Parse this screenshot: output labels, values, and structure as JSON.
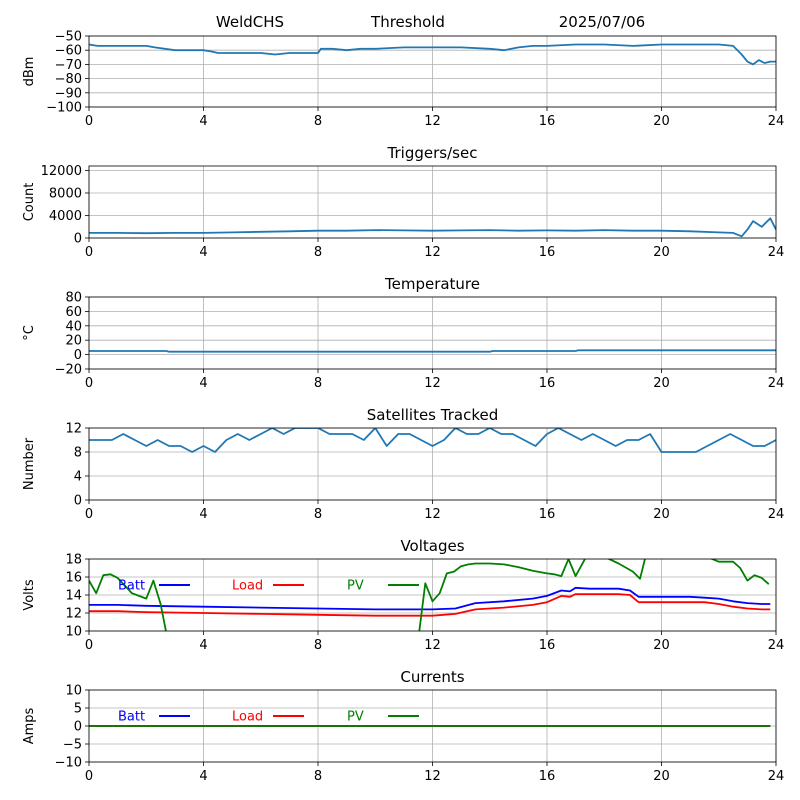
{
  "header": {
    "station": "WeldCHS",
    "mode": "Threshold",
    "date": "2025/07/06"
  },
  "colors": {
    "main": "#1f77b4",
    "batt": "#0000ff",
    "load": "#ff0000",
    "pv": "#008000"
  },
  "chart_data": [
    {
      "id": "signal",
      "type": "line",
      "title": "",
      "ylabel": "dBm",
      "xlim": [
        0,
        24
      ],
      "ylim": [
        -100,
        -50
      ],
      "xticks": [
        0,
        4,
        8,
        12,
        16,
        20,
        24
      ],
      "yticks": [
        -100,
        -90,
        -80,
        -70,
        -60,
        -50
      ],
      "series": [
        {
          "color_key": "main",
          "x": [
            0,
            0.3,
            1,
            2,
            2.3,
            3,
            4,
            4.3,
            4.5,
            5,
            6,
            6.5,
            7,
            7.5,
            8,
            8.1,
            8.5,
            9,
            9.5,
            10,
            11,
            12,
            13,
            14,
            14.5,
            15,
            15.5,
            16,
            17,
            18,
            19,
            20,
            21,
            22,
            22.5,
            22.8,
            23,
            23.2,
            23.4,
            23.6,
            23.8,
            24
          ],
          "y": [
            -56,
            -57,
            -57,
            -57,
            -58,
            -60,
            -60,
            -61,
            -62,
            -62,
            -62,
            -63,
            -62,
            -62,
            -62,
            -59,
            -59,
            -60,
            -59,
            -59,
            -58,
            -58,
            -58,
            -59,
            -60,
            -58,
            -57,
            -57,
            -56,
            -56,
            -57,
            -56,
            -56,
            -56,
            -57,
            -63,
            -68,
            -70,
            -67,
            -69,
            -68,
            -68
          ]
        }
      ]
    },
    {
      "id": "triggers",
      "type": "line",
      "title": "Triggers/sec",
      "ylabel": "Count",
      "xlim": [
        0,
        24
      ],
      "ylim": [
        0,
        12800
      ],
      "xticks": [
        0,
        4,
        8,
        12,
        16,
        20,
        24
      ],
      "yticks": [
        0,
        4000,
        8000,
        12000
      ],
      "series": [
        {
          "color_key": "main",
          "x": [
            0,
            1,
            2,
            3,
            4,
            5,
            6,
            7,
            8,
            9,
            10,
            11,
            12,
            13,
            14,
            15,
            16,
            17,
            18,
            19,
            20,
            21,
            22,
            22.5,
            22.8,
            23,
            23.2,
            23.5,
            23.8,
            24
          ],
          "y": [
            900,
            900,
            850,
            900,
            900,
            1000,
            1100,
            1200,
            1300,
            1300,
            1400,
            1350,
            1300,
            1350,
            1400,
            1300,
            1350,
            1300,
            1400,
            1300,
            1300,
            1200,
            1000,
            900,
            300,
            1500,
            3000,
            2000,
            3500,
            1500
          ]
        }
      ]
    },
    {
      "id": "temperature",
      "type": "line",
      "title": "Temperature",
      "ylabel": "°C",
      "xlim": [
        0,
        24
      ],
      "ylim": [
        -20,
        80
      ],
      "xticks": [
        0,
        4,
        8,
        12,
        16,
        20,
        24
      ],
      "yticks": [
        -20,
        0,
        20,
        40,
        60,
        80
      ],
      "series": [
        {
          "color_key": "main",
          "x": [
            0,
            2.7,
            2.8,
            14,
            14.1,
            17,
            17.1,
            24
          ],
          "y": [
            5,
            5,
            4,
            4,
            5,
            5,
            6,
            6
          ]
        }
      ]
    },
    {
      "id": "satellites",
      "type": "line",
      "title": "Satellites Tracked",
      "ylabel": "Number",
      "xlim": [
        0,
        24
      ],
      "ylim": [
        0,
        12
      ],
      "xticks": [
        0,
        4,
        8,
        12,
        16,
        20,
        24
      ],
      "yticks": [
        0,
        4,
        8,
        12
      ],
      "series": [
        {
          "color_key": "main",
          "x": [
            0,
            0.8,
            1.2,
            1.6,
            2,
            2.4,
            2.8,
            3.2,
            3.6,
            4,
            4.4,
            4.8,
            5.2,
            5.6,
            6,
            6.4,
            6.8,
            7.2,
            7.6,
            8,
            8.4,
            8.8,
            9.2,
            9.6,
            10,
            10.4,
            10.8,
            11.2,
            11.6,
            12,
            12.4,
            12.8,
            13.2,
            13.6,
            14,
            14.4,
            14.8,
            15.2,
            15.6,
            16,
            16.4,
            16.8,
            17.2,
            17.6,
            18,
            18.4,
            18.8,
            19.2,
            19.6,
            20,
            20.4,
            20.8,
            21.2,
            21.6,
            22,
            22.4,
            22.8,
            23.2,
            23.6,
            24
          ],
          "y": [
            10,
            10,
            11,
            10,
            9,
            10,
            9,
            9,
            8,
            9,
            8,
            10,
            11,
            10,
            11,
            12,
            11,
            12,
            12,
            12,
            11,
            11,
            11,
            10,
            12,
            9,
            11,
            11,
            10,
            9,
            10,
            12,
            11,
            11,
            12,
            11,
            11,
            10,
            9,
            11,
            12,
            11,
            10,
            11,
            10,
            9,
            10,
            10,
            11,
            8,
            8,
            8,
            8,
            9,
            10,
            11,
            10,
            9,
            9,
            10
          ]
        }
      ]
    },
    {
      "id": "voltages",
      "type": "line",
      "title": "Voltages",
      "ylabel": "Volts",
      "xlim": [
        0,
        24
      ],
      "ylim": [
        10,
        18
      ],
      "xticks": [
        0,
        4,
        8,
        12,
        16,
        20,
        24
      ],
      "yticks": [
        10,
        12,
        14,
        16,
        18
      ],
      "legend": [
        "Batt",
        "Load",
        "PV"
      ],
      "series": [
        {
          "name": "Batt",
          "color_key": "batt",
          "x": [
            0,
            1,
            2,
            4,
            6,
            8,
            10,
            12,
            12.8,
            13.5,
            14.5,
            15.5,
            16,
            16.5,
            16.8,
            17,
            17.5,
            18.5,
            18.9,
            19.2,
            20,
            21,
            21.5,
            22,
            22.5,
            23,
            23.5,
            23.8
          ],
          "y": [
            12.9,
            12.9,
            12.8,
            12.7,
            12.6,
            12.5,
            12.4,
            12.4,
            12.5,
            13.1,
            13.3,
            13.6,
            13.9,
            14.5,
            14.4,
            14.8,
            14.7,
            14.7,
            14.5,
            13.8,
            13.8,
            13.8,
            13.7,
            13.6,
            13.3,
            13.1,
            13.0,
            13.0
          ]
        },
        {
          "name": "Load",
          "color_key": "load",
          "x": [
            0,
            1,
            2,
            4,
            6,
            8,
            10,
            12,
            12.8,
            13.5,
            14.5,
            15.5,
            16,
            16.5,
            16.8,
            17,
            17.5,
            18.5,
            18.9,
            19.2,
            20,
            21,
            21.5,
            22,
            22.5,
            23,
            23.5,
            23.8
          ],
          "y": [
            12.2,
            12.2,
            12.1,
            12.0,
            11.9,
            11.8,
            11.7,
            11.7,
            11.9,
            12.4,
            12.6,
            12.9,
            13.2,
            13.9,
            13.8,
            14.1,
            14.1,
            14.1,
            14.0,
            13.2,
            13.2,
            13.2,
            13.2,
            13.0,
            12.7,
            12.5,
            12.4,
            12.4
          ]
        },
        {
          "name": "PV",
          "color_key": "pv",
          "x": [
            0,
            0.25,
            0.5,
            0.75,
            1,
            1.5,
            2,
            2.25,
            2.5,
            2.75,
            11.5,
            11.75,
            12,
            12.25,
            12.5,
            12.75,
            13,
            13.25,
            13.5,
            14,
            14.5,
            15,
            15.5,
            16,
            16.25,
            16.5,
            16.75,
            17,
            17.5,
            18.5,
            19,
            19.25,
            19.5,
            20,
            20.5,
            21,
            22,
            22.5,
            22.75,
            23,
            23.25,
            23.5,
            23.75
          ],
          "y": [
            15.6,
            14.2,
            16.2,
            16.3,
            15.9,
            14.2,
            13.6,
            15.6,
            13.0,
            9.0,
            9.0,
            15.3,
            13.3,
            14.2,
            16.4,
            16.6,
            17.2,
            17.4,
            17.5,
            17.5,
            17.4,
            17.1,
            16.7,
            16.4,
            16.3,
            16.1,
            18.0,
            16.1,
            19.0,
            17.5,
            16.6,
            15.8,
            19.0,
            19.0,
            19.0,
            19.0,
            17.7,
            17.7,
            17.0,
            15.6,
            16.2,
            15.9,
            15.2
          ]
        }
      ]
    },
    {
      "id": "currents",
      "type": "line",
      "title": "Currents",
      "ylabel": "Amps",
      "xlim": [
        0,
        24
      ],
      "ylim": [
        -10,
        10
      ],
      "xticks": [
        0,
        4,
        8,
        12,
        16,
        20,
        24
      ],
      "yticks": [
        -10,
        -5,
        0,
        5,
        10
      ],
      "legend": [
        "Batt",
        "Load",
        "PV"
      ],
      "series": [
        {
          "name": "Batt",
          "color_key": "batt",
          "x": [
            0,
            23.8
          ],
          "y": [
            0,
            0
          ]
        },
        {
          "name": "Load",
          "color_key": "load",
          "x": [
            0,
            23.8
          ],
          "y": [
            0,
            0
          ]
        },
        {
          "name": "PV",
          "color_key": "pv",
          "x": [
            0,
            23.8
          ],
          "y": [
            0,
            0
          ]
        }
      ]
    }
  ]
}
